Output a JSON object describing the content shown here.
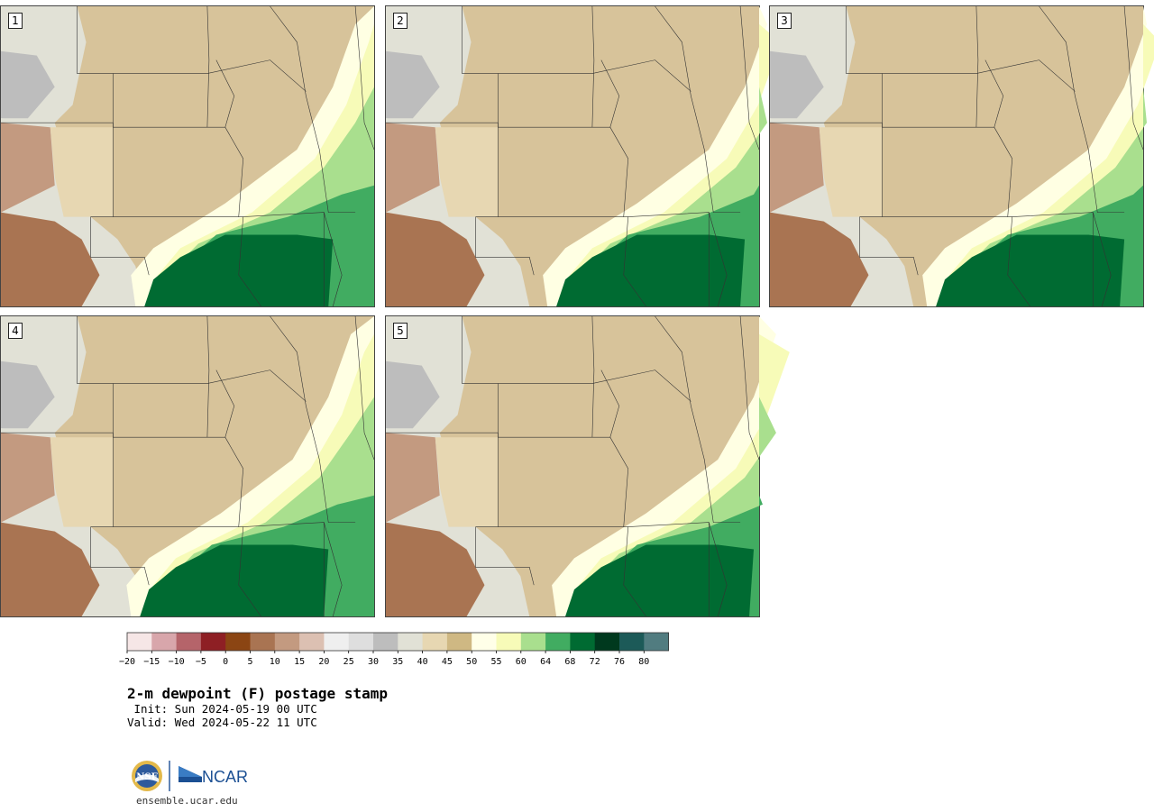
{
  "panels": [
    {
      "label": "1"
    },
    {
      "label": "2"
    },
    {
      "label": "3"
    },
    {
      "label": "4"
    },
    {
      "label": "5"
    }
  ],
  "colorbar": {
    "ticks": [
      "−20",
      "−15",
      "−10",
      "−5",
      "0",
      "5",
      "10",
      "15",
      "20",
      "25",
      "30",
      "35",
      "40",
      "45",
      "50",
      "55",
      "60",
      "64",
      "68",
      "72",
      "76",
      "80"
    ],
    "colors": [
      "#f6e6e6",
      "#d8a6ab",
      "#b5646a",
      "#8e1f24",
      "#8b4513",
      "#a97452",
      "#c39a80",
      "#dcc0b2",
      "#efefef",
      "#dedede",
      "#bdbdbd",
      "#e1e1d6",
      "#e7d7b2",
      "#cfb883",
      "#ffffe8",
      "#f7fbb8",
      "#a9df8e",
      "#41ac61",
      "#006b32",
      "#00391e",
      "#1c5a58",
      "#517c80"
    ]
  },
  "map_palette": {
    "tan": "#d7c39a",
    "light_tan": "#e7d7b2",
    "cream": "#ffffe3",
    "yellow": "#f7fbb8",
    "light_green": "#a9df8e",
    "green": "#41ac61",
    "dark_green": "#006b32",
    "gray": "#bdbdbd",
    "light_gray": "#e1e1d6",
    "brown": "#a97452",
    "rose": "#c39a80"
  },
  "title": "2-m dewpoint (F) postage stamp",
  "init": " Init: Sun 2024-05-19 00 UTC",
  "valid": "Valid: Wed 2024-05-22 11 UTC",
  "logos": {
    "nsf": "NSF",
    "ncar": "NCAR"
  },
  "site": "ensemble.ucar.edu"
}
